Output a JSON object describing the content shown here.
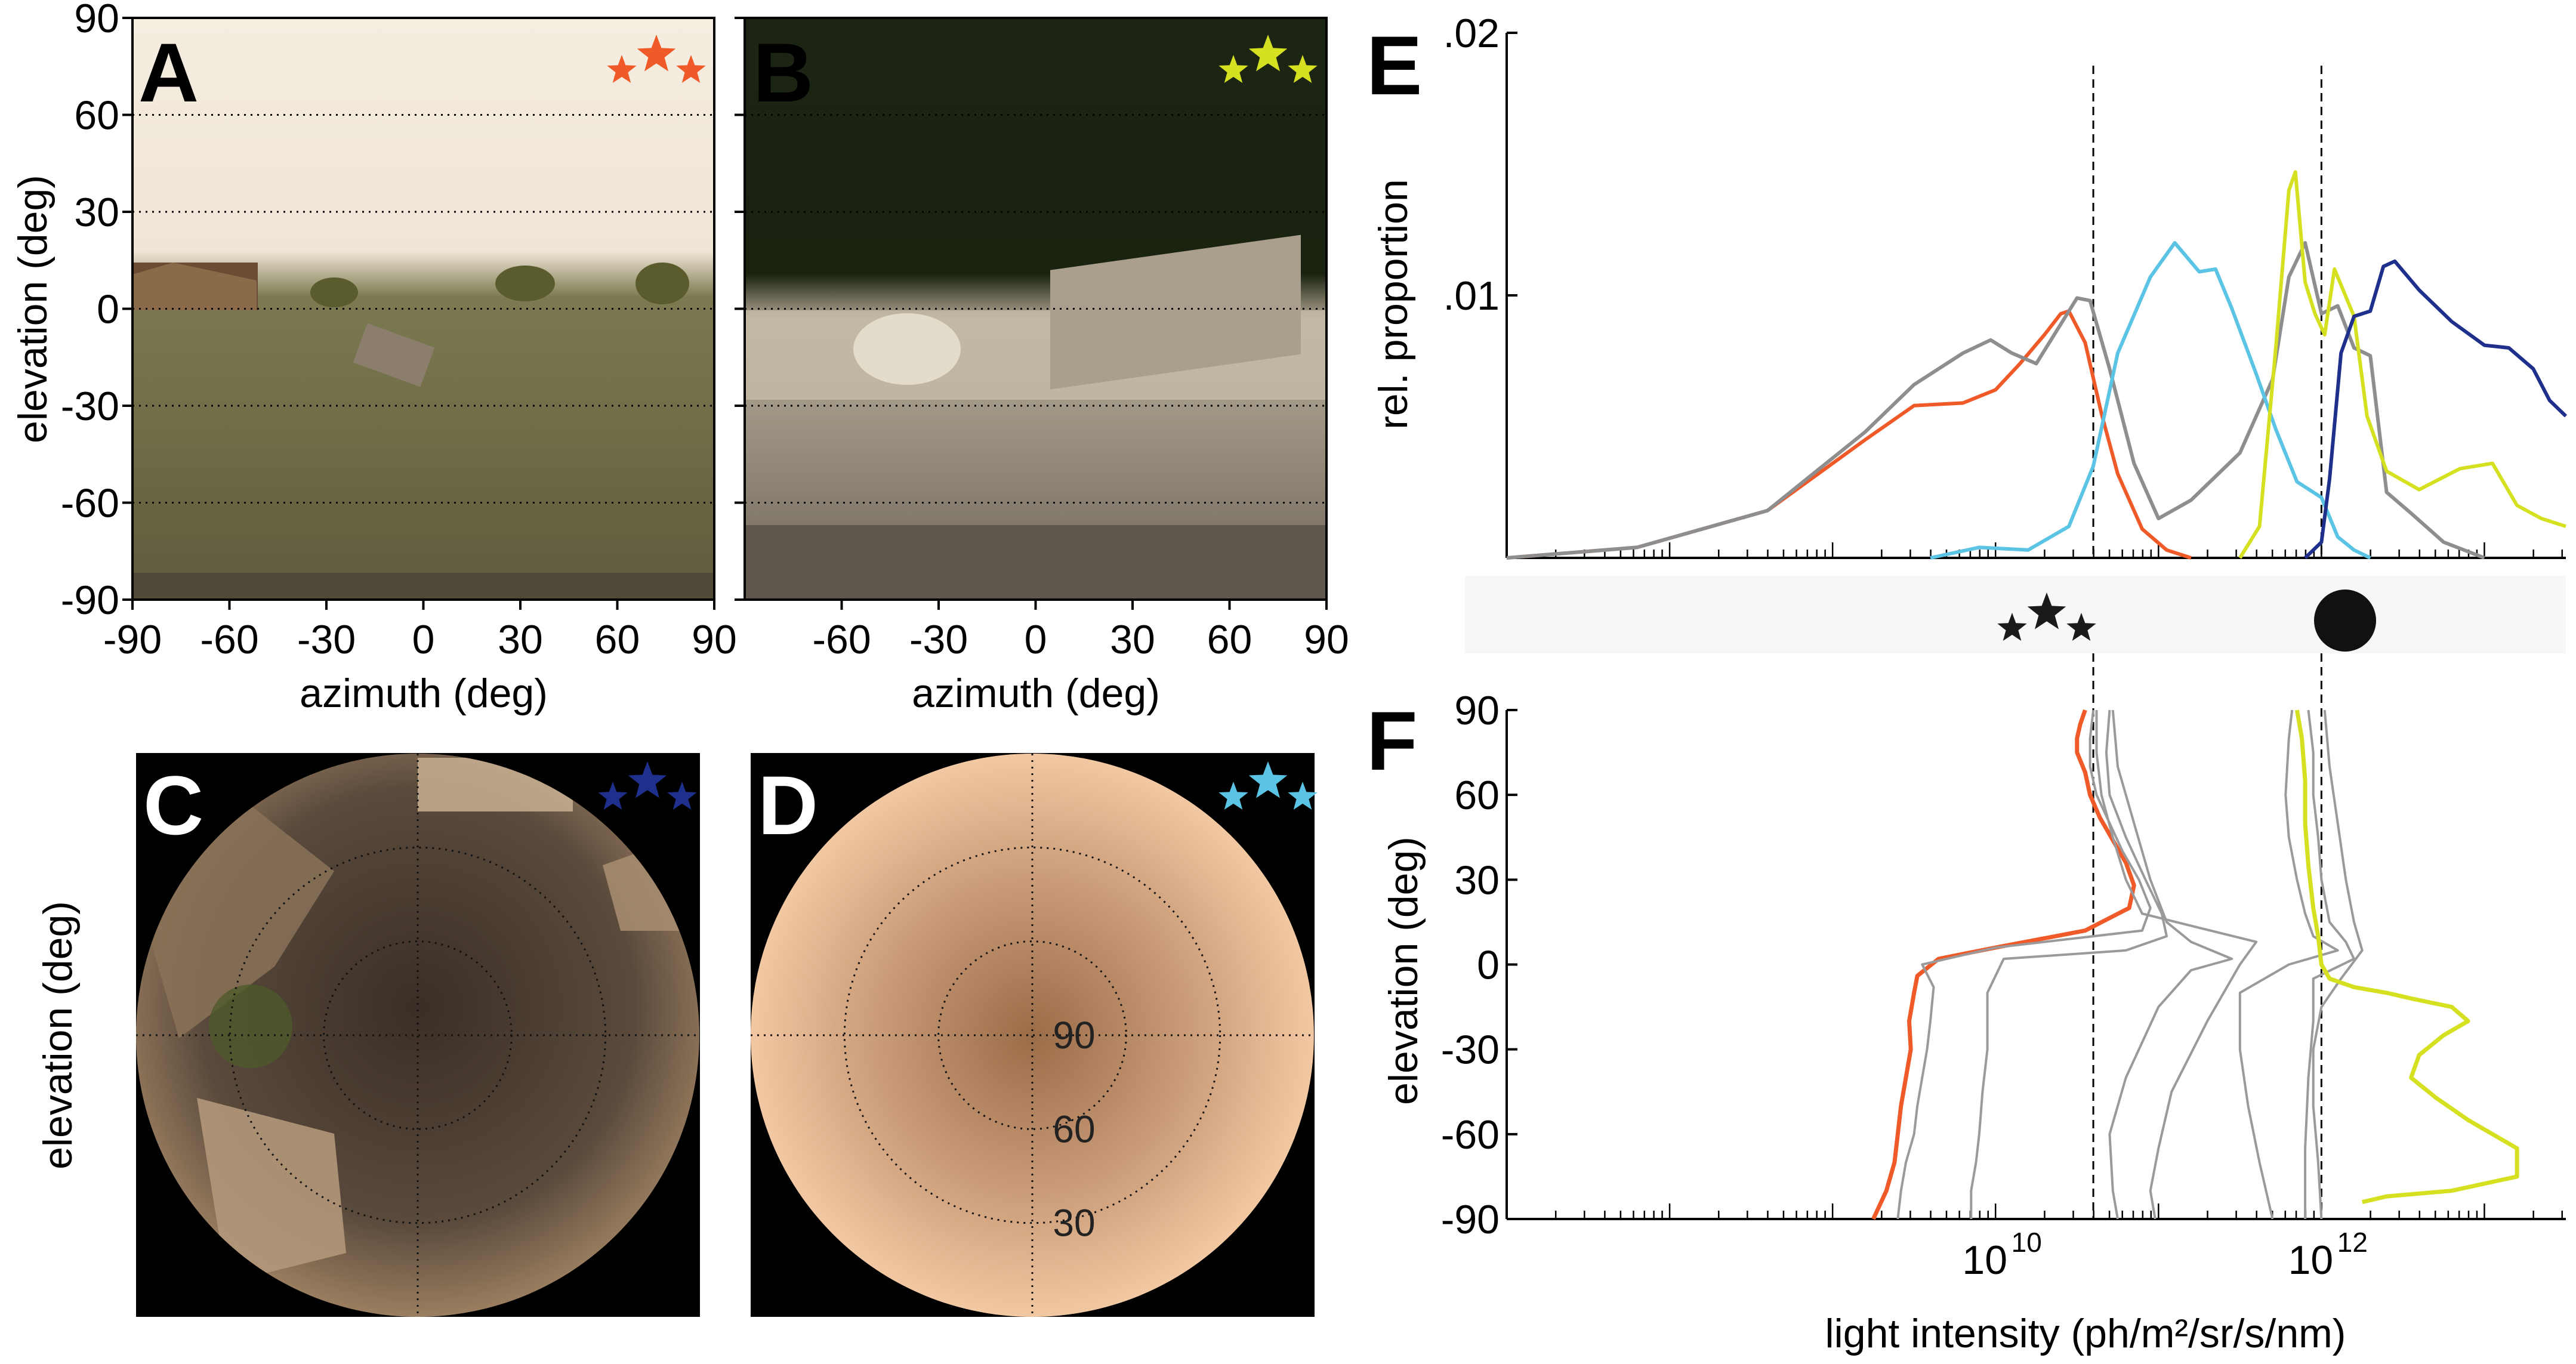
{
  "panels": {
    "A": {
      "letter": "A",
      "star_color": "#f05a28"
    },
    "B": {
      "letter": "B",
      "star_color": "#d4e020"
    },
    "C": {
      "letter": "C",
      "star_color": "#1e2f8c"
    },
    "D": {
      "letter": "D",
      "star_color": "#5bc3e3"
    },
    "E": {
      "letter": "E"
    },
    "F": {
      "letter": "F"
    }
  },
  "panel_ab": {
    "ylabel": "elevation (deg)",
    "xlabel": "azimuth (deg)",
    "yticks": [
      "90",
      "60",
      "30",
      "0",
      "-30",
      "-60",
      "-90"
    ],
    "xticks_A": [
      "-90",
      "-60",
      "-30",
      "0",
      "30",
      "60",
      "90"
    ],
    "xticks_B": [
      "-60",
      "-30",
      "0",
      "30",
      "60",
      "90"
    ],
    "dotted_elevations": [
      60,
      30,
      0,
      -30,
      -60
    ]
  },
  "panel_cd": {
    "ylabel": "elevation (deg)",
    "ring_labels": [
      "90",
      "60",
      "30"
    ]
  },
  "chart_data": [
    {
      "id": "E",
      "type": "line",
      "xlabel": "",
      "ylabel": "rel. proportion",
      "yticks": [
        ".02",
        ".01"
      ],
      "ylim": [
        0,
        0.02
      ],
      "xscale": "log",
      "xlim_log10": [
        7.0,
        13.5
      ],
      "vlines_log10": [
        10.6,
        12.0
      ],
      "series": [
        {
          "color": "#f05a28",
          "x_log10": [
            7.0,
            7.8,
            8.6,
            9.2,
            9.5,
            9.8,
            10.0,
            10.15,
            10.3,
            10.4,
            10.45,
            10.55,
            10.65,
            10.75,
            10.9,
            11.05,
            11.2
          ],
          "y": [
            0.0,
            0.0004,
            0.0018,
            0.0045,
            0.0058,
            0.0059,
            0.0064,
            0.0074,
            0.0085,
            0.0093,
            0.0094,
            0.0082,
            0.0055,
            0.0032,
            0.0011,
            0.0003,
            0.0
          ]
        },
        {
          "color": "#8e8e8e",
          "x_log10": [
            7.0,
            7.8,
            8.6,
            9.2,
            9.5,
            9.8,
            9.97,
            10.1,
            10.25,
            10.4,
            10.5,
            10.58,
            10.7,
            10.85,
            11.0,
            11.2,
            11.5,
            11.7,
            11.8,
            11.9,
            12.0,
            12.1,
            12.2,
            12.3,
            12.4,
            12.55,
            12.75,
            13.0
          ],
          "y": [
            0.0,
            0.0004,
            0.0018,
            0.0048,
            0.0066,
            0.0078,
            0.0083,
            0.0078,
            0.0074,
            0.0089,
            0.0099,
            0.0098,
            0.0072,
            0.0036,
            0.0015,
            0.0022,
            0.004,
            0.0068,
            0.0107,
            0.012,
            0.0093,
            0.0096,
            0.008,
            0.0077,
            0.0025,
            0.0017,
            0.0006,
            0.0
          ]
        },
        {
          "color": "#5bc3e3",
          "x_log10": [
            9.6,
            9.9,
            10.2,
            10.45,
            10.6,
            10.75,
            10.95,
            11.1,
            11.25,
            11.35,
            11.45,
            11.6,
            11.72,
            11.85,
            12.0,
            12.1,
            12.2,
            12.3
          ],
          "y": [
            0.0,
            0.0004,
            0.0003,
            0.0012,
            0.0035,
            0.0078,
            0.0107,
            0.012,
            0.0109,
            0.011,
            0.0095,
            0.007,
            0.0049,
            0.0029,
            0.0023,
            0.0008,
            0.0003,
            0.0
          ]
        },
        {
          "color": "#d4e020",
          "x_log10": [
            11.5,
            11.62,
            11.72,
            11.8,
            11.84,
            11.9,
            11.96,
            12.02,
            12.08,
            12.14,
            12.2,
            12.28,
            12.4,
            12.6,
            12.85,
            13.05,
            13.2,
            13.35,
            13.5
          ],
          "y": [
            0.0,
            0.0012,
            0.008,
            0.014,
            0.0147,
            0.0105,
            0.0093,
            0.0085,
            0.011,
            0.0101,
            0.0092,
            0.0054,
            0.0033,
            0.0026,
            0.0034,
            0.0036,
            0.002,
            0.0015,
            0.0012
          ]
        },
        {
          "color": "#1e2f8c",
          "x_log10": [
            11.9,
            12.0,
            12.05,
            12.12,
            12.2,
            12.3,
            12.38,
            12.45,
            12.6,
            12.8,
            13.0,
            13.15,
            13.3,
            13.4,
            13.5
          ],
          "y": [
            0.0,
            0.0006,
            0.003,
            0.0078,
            0.0092,
            0.0094,
            0.0111,
            0.0113,
            0.0102,
            0.009,
            0.0081,
            0.008,
            0.0072,
            0.006,
            0.0054
          ]
        }
      ]
    },
    {
      "id": "F",
      "type": "line",
      "xlabel": "light intensity (ph/m²/sr/s/nm)",
      "ylabel": "elevation (deg)",
      "xscale": "log",
      "xlim_log10": [
        7.0,
        13.5
      ],
      "xticks": [
        {
          "base": "10",
          "exp": "10",
          "log10": 10
        },
        {
          "base": "10",
          "exp": "12",
          "log10": 12
        }
      ],
      "yticks": [
        "90",
        "60",
        "30",
        "0",
        "-30",
        "-60",
        "-90"
      ],
      "ylim": [
        -90,
        90
      ],
      "vlines_log10": [
        10.6,
        12.0
      ],
      "series": [
        {
          "color": "#f05a28",
          "x_log10": [
            10.55,
            10.52,
            10.5,
            10.5,
            10.55,
            10.58,
            10.64,
            10.72,
            10.8,
            10.85,
            10.82,
            10.55,
            10.0,
            9.65,
            9.52,
            9.5,
            9.47,
            9.48,
            9.45,
            9.42,
            9.4,
            9.38,
            9.33,
            9.25
          ],
          "y": [
            90,
            85,
            80,
            75,
            68,
            60,
            52,
            44,
            36,
            28,
            20,
            12,
            6,
            2,
            -4,
            -10,
            -20,
            -30,
            -40,
            -50,
            -60,
            -70,
            -80,
            -90
          ]
        },
        {
          "color": "#9a9a9a",
          "x_log10": [
            10.6,
            10.58,
            10.58,
            10.62,
            10.7,
            10.78,
            10.88,
            10.95,
            10.9,
            10.0,
            9.55,
            9.62,
            9.6,
            9.58,
            9.55,
            9.52,
            9.5,
            9.45,
            9.42,
            9.4
          ],
          "y": [
            90,
            80,
            70,
            60,
            50,
            40,
            30,
            20,
            12,
            6,
            0,
            -8,
            -20,
            -30,
            -40,
            -50,
            -60,
            -70,
            -80,
            -90
          ]
        },
        {
          "color": "#9a9a9a",
          "x_log10": [
            10.7,
            10.68,
            10.7,
            10.8,
            10.92,
            11.02,
            11.05,
            10.8,
            10.05,
            9.95,
            9.95,
            9.92,
            9.9,
            9.88,
            9.85,
            9.85
          ],
          "y": [
            90,
            75,
            60,
            45,
            30,
            18,
            10,
            5,
            2,
            -10,
            -30,
            -45,
            -60,
            -70,
            -80,
            -90
          ]
        },
        {
          "color": "#9a9a9a",
          "x_log10": [
            10.72,
            10.75,
            10.85,
            10.95,
            11.05,
            11.2,
            11.45,
            11.2,
            11.0,
            10.8,
            10.7,
            10.72,
            10.75
          ],
          "y": [
            90,
            70,
            50,
            30,
            15,
            8,
            2,
            -2,
            -15,
            -40,
            -60,
            -80,
            -90
          ]
        },
        {
          "color": "#9a9a9a",
          "x_log10": [
            10.62,
            10.62,
            10.65,
            10.72,
            10.8,
            10.9,
            11.6,
            11.5,
            11.3,
            11.08,
            11.0,
            10.95,
            10.98
          ],
          "y": [
            90,
            75,
            60,
            45,
            30,
            18,
            8,
            0,
            -20,
            -45,
            -65,
            -80,
            -90
          ]
        },
        {
          "color": "#9a9a9a",
          "x_log10": [
            11.82,
            11.8,
            11.78,
            11.8,
            11.85,
            11.9,
            11.95,
            12.1,
            11.8,
            11.5,
            11.5,
            11.55,
            11.62,
            11.7
          ],
          "y": [
            90,
            80,
            60,
            45,
            30,
            18,
            10,
            5,
            0,
            -10,
            -30,
            -50,
            -70,
            -90
          ]
        },
        {
          "color": "#9a9a9a",
          "x_log10": [
            11.92,
            11.95,
            11.95,
            11.98,
            12.0,
            12.05,
            12.15,
            12.2,
            11.95,
            11.95,
            11.92,
            11.9,
            11.9
          ],
          "y": [
            90,
            75,
            60,
            45,
            30,
            15,
            8,
            2,
            -5,
            -20,
            -40,
            -65,
            -90
          ]
        },
        {
          "color": "#9a9a9a",
          "x_log10": [
            12.02,
            12.05,
            12.1,
            12.15,
            12.2,
            12.25,
            12.12,
            12.0,
            11.95,
            11.95,
            11.98,
            12.0
          ],
          "y": [
            90,
            70,
            50,
            30,
            15,
            5,
            -5,
            -15,
            -30,
            -50,
            -70,
            -90
          ]
        },
        {
          "color": "#d4e020",
          "x_log10": [
            11.85,
            11.88,
            11.9,
            11.9,
            11.92,
            11.95,
            11.98,
            12.0,
            12.05,
            12.2,
            12.4,
            12.55,
            12.8,
            12.9,
            12.75,
            12.6,
            12.55,
            12.7,
            12.9,
            13.05,
            13.2,
            13.2,
            12.8,
            12.4,
            12.25
          ],
          "y": [
            90,
            80,
            65,
            50,
            35,
            20,
            10,
            0,
            -5,
            -8,
            -10,
            -12,
            -15,
            -20,
            -25,
            -32,
            -40,
            -47,
            -55,
            -60,
            -65,
            -75,
            -80,
            -82,
            -84
          ]
        }
      ]
    }
  ]
}
